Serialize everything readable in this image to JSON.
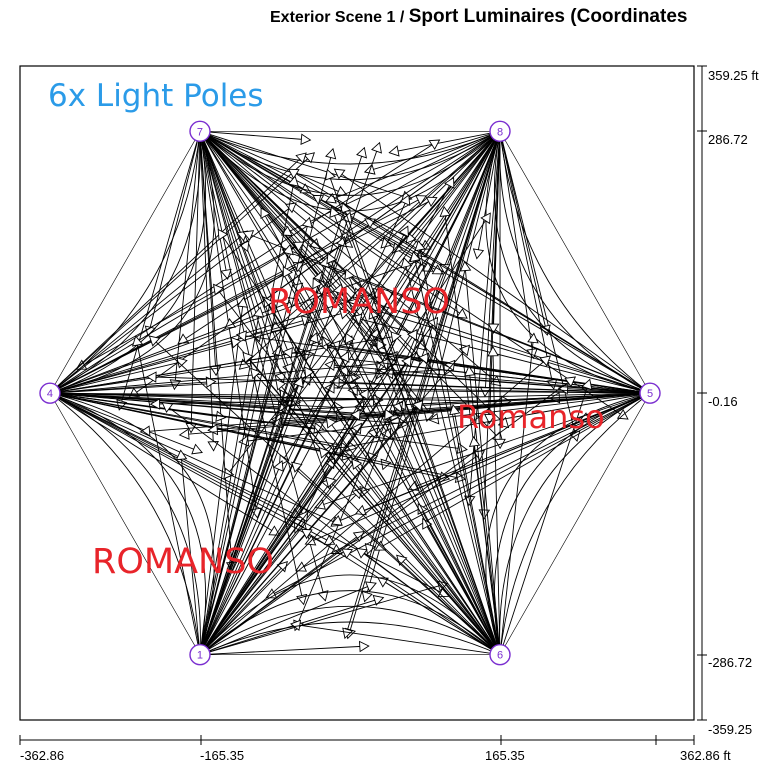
{
  "title": {
    "scene": "Exterior Scene 1",
    "separator": " / ",
    "subtitle": "Sport Luminaires (Coordinates"
  },
  "annotations": {
    "blue": "6x Light Poles",
    "red_1": "ROMANSO",
    "red_2": "Romanso",
    "red_3": "ROMANSO"
  },
  "axes": {
    "x_ticks": [
      "-362.86",
      "-165.35",
      "165.35",
      "362.86 ft"
    ],
    "y_ticks": [
      "359.25 ft",
      "286.72",
      "-0.16",
      "-286.72",
      "-359.25"
    ]
  },
  "poles": [
    {
      "label": "7",
      "x": -165.35,
      "y": 286.72
    },
    {
      "label": "8",
      "x": 165.35,
      "y": 286.72
    },
    {
      "label": "4",
      "x": -330.7,
      "y": -0.16
    },
    {
      "label": "5",
      "x": 330.7,
      "y": -0.16
    },
    {
      "label": "1",
      "x": -165.35,
      "y": -286.72
    },
    {
      "label": "6",
      "x": 165.35,
      "y": -286.72
    }
  ],
  "colors": {
    "pole_ring": "#7b2fd0",
    "pole_text": "#7b2fd0",
    "lines": "#000000",
    "annotation_blue": "#2b9be8",
    "annotation_red": "#e8242a"
  }
}
